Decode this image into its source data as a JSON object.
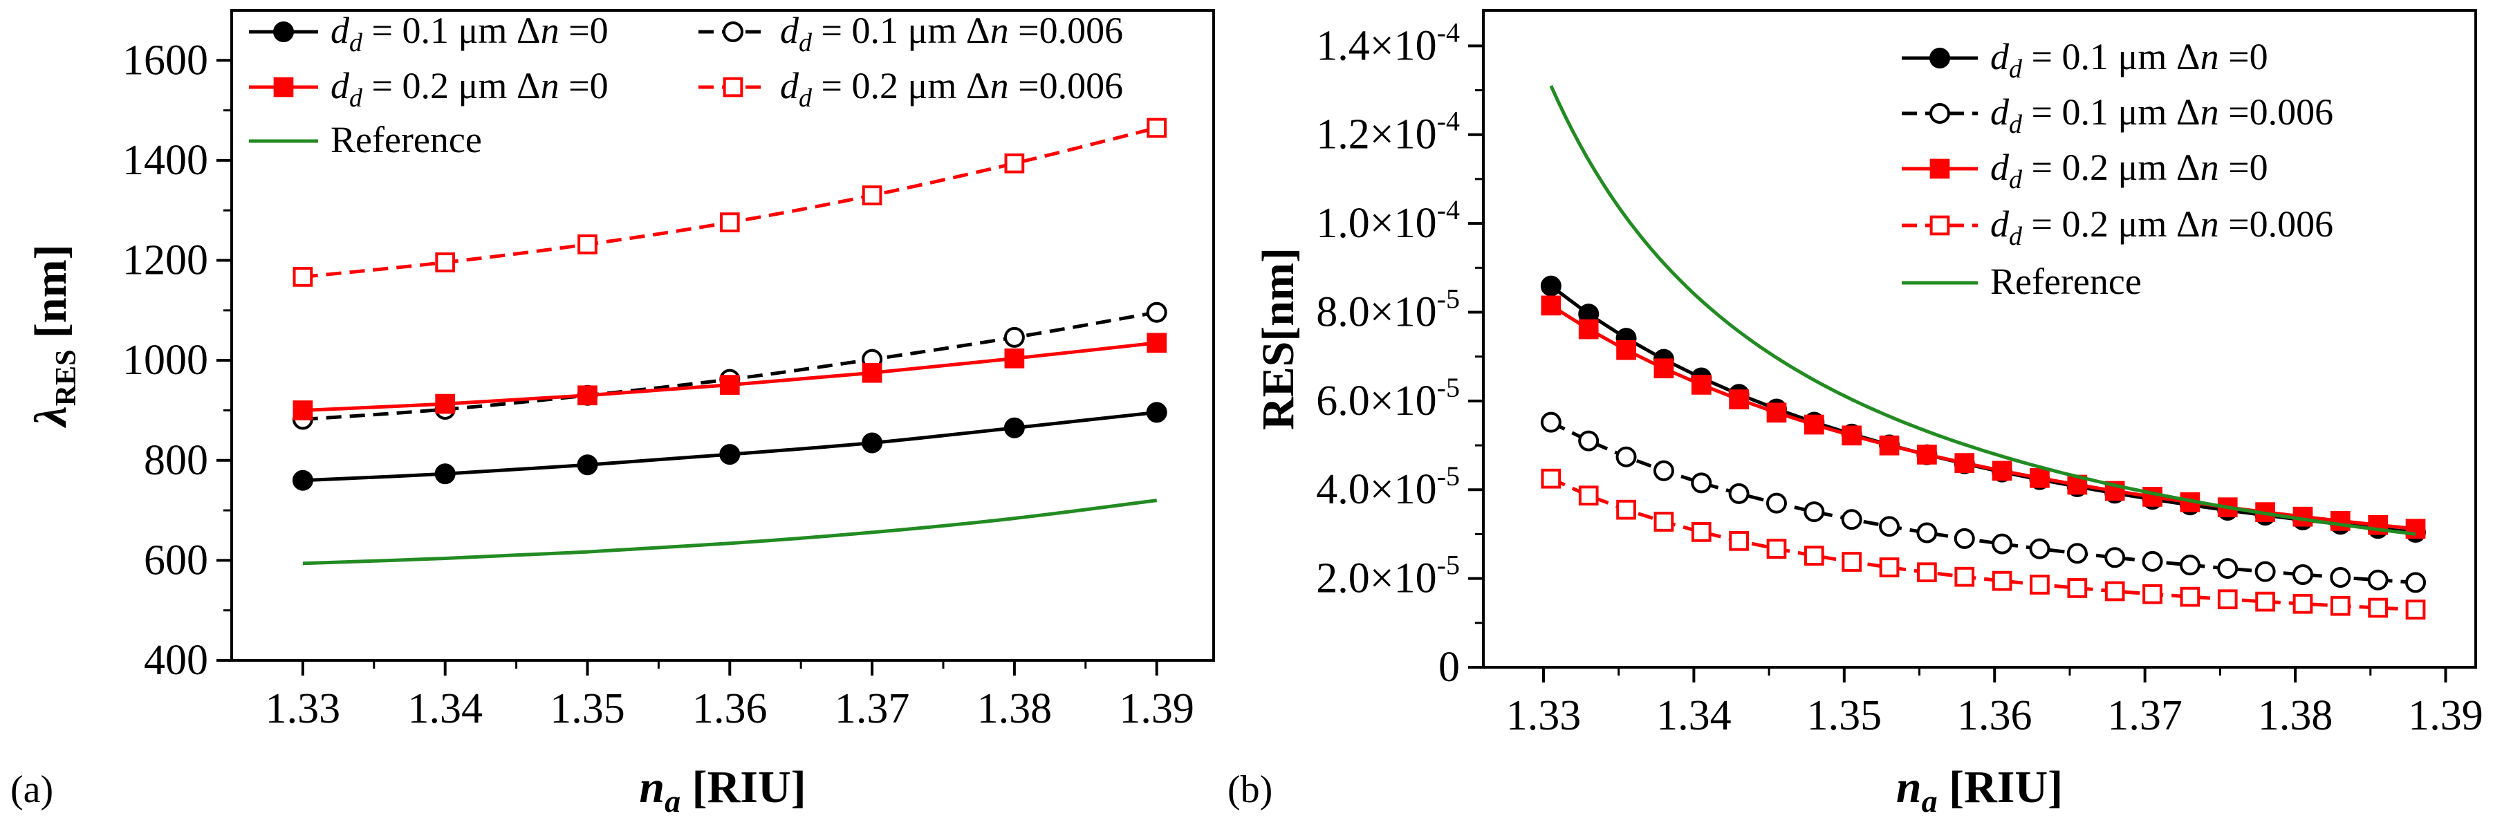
{
  "chart_data": [
    {
      "panel": "(a)",
      "type": "line",
      "xlabel": "n_a [RIU]",
      "xlabel_parts": {
        "var": "n",
        "sub": "a",
        "unit": " [RIU]"
      },
      "ylabel": "λRES [nm]",
      "ylabel_parts": {
        "var": "λ",
        "sub": "RES",
        "unit": " [nm]"
      },
      "xlim": [
        1.325,
        1.394
      ],
      "ylim": [
        400,
        1700
      ],
      "x_ticks": [
        "1.33",
        "1.34",
        "1.35",
        "1.36",
        "1.37",
        "1.38",
        "1.39"
      ],
      "y_ticks": [
        "400",
        "600",
        "800",
        "1000",
        "1200",
        "1400",
        "1600"
      ],
      "y_tick_values": [
        400,
        600,
        800,
        1000,
        1200,
        1400,
        1600
      ],
      "legend_position": "top",
      "series": [
        {
          "name": "dd = 0.1 μm Δn =0",
          "legend": {
            "pre": "d",
            "sub": "d",
            "post": " = 0.1 μm Δ",
            "ital": "n",
            "end": " =0"
          },
          "color": "#000000",
          "dash": "solid",
          "marker": "circle-filled",
          "x": [
            1.33,
            1.34,
            1.35,
            1.36,
            1.37,
            1.38,
            1.39
          ],
          "values": [
            760,
            773,
            791,
            812,
            835,
            865,
            896
          ]
        },
        {
          "name": "dd = 0.1 μm Δn =0.006",
          "legend": {
            "pre": "d",
            "sub": "d",
            "post": " = 0.1 μm Δ",
            "ital": "n",
            "end": " =0.006"
          },
          "color": "#000000",
          "dash": "dashed",
          "marker": "circle-open",
          "x": [
            1.33,
            1.34,
            1.35,
            1.36,
            1.37,
            1.38,
            1.39
          ],
          "values": [
            882,
            902,
            930,
            962,
            1002,
            1046,
            1096
          ]
        },
        {
          "name": "dd = 0.2 μm Δn =0",
          "legend": {
            "pre": "d",
            "sub": "d",
            "post": " = 0.2 μm Δ",
            "ital": "n",
            "end": " =0"
          },
          "color": "#ff0000",
          "dash": "solid",
          "marker": "square-filled",
          "x": [
            1.33,
            1.34,
            1.35,
            1.36,
            1.37,
            1.38,
            1.39
          ],
          "values": [
            900,
            913,
            930,
            951,
            975,
            1004,
            1035
          ]
        },
        {
          "name": "dd = 0.2 μm Δn =0.006",
          "legend": {
            "pre": "d",
            "sub": "d",
            "post": " = 0.2 μm Δ",
            "ital": "n",
            "end": " =0.006"
          },
          "color": "#ff0000",
          "dash": "dashed",
          "marker": "square-open",
          "x": [
            1.33,
            1.34,
            1.35,
            1.36,
            1.37,
            1.38,
            1.39
          ],
          "values": [
            1167,
            1196,
            1232,
            1276,
            1330,
            1394,
            1465
          ]
        },
        {
          "name": "Reference",
          "legend": {
            "pre": "Reference",
            "sub": "",
            "post": "",
            "ital": "",
            "end": ""
          },
          "color": "#228b22",
          "dash": "solid",
          "marker": "none",
          "x": [
            1.33,
            1.34,
            1.35,
            1.36,
            1.37,
            1.38,
            1.39
          ],
          "values": [
            594,
            604,
            617,
            634,
            656,
            684,
            720
          ]
        }
      ]
    },
    {
      "panel": "(b)",
      "type": "line",
      "xlabel": "n_a [RIU]",
      "xlabel_parts": {
        "var": "n",
        "sub": "a",
        "unit": " [RIU]"
      },
      "ylabel": "RES[nm]",
      "xlim": [
        1.326,
        1.392
      ],
      "ylim": [
        0,
        0.000148
      ],
      "x_ticks": [
        "1.33",
        "1.34",
        "1.35",
        "1.36",
        "1.37",
        "1.38",
        "1.39"
      ],
      "y_ticks": [
        {
          "mant": "0",
          "exp": ""
        },
        {
          "mant": "2.0×10",
          "exp": "-5"
        },
        {
          "mant": "4.0×10",
          "exp": "-5"
        },
        {
          "mant": "6.0×10",
          "exp": "-5"
        },
        {
          "mant": "8.0×10",
          "exp": "-5"
        },
        {
          "mant": "1.0×10",
          "exp": "-4"
        },
        {
          "mant": "1.2×10",
          "exp": "-4"
        },
        {
          "mant": "1.4×10",
          "exp": "-4"
        }
      ],
      "y_tick_values": [
        0,
        2e-05,
        4e-05,
        6e-05,
        8e-05,
        0.0001,
        0.00012,
        0.00014
      ],
      "legend_position": "top-right",
      "series": [
        {
          "name": "dd = 0.1 μm Δn =0",
          "legend": {
            "pre": "d",
            "sub": "d",
            "post": " = 0.1 μm Δ",
            "ital": "n",
            "end": " =0"
          },
          "color": "#000000",
          "dash": "solid",
          "marker": "circle-filled",
          "x_start": 1.3305,
          "x_step": 0.0025,
          "count": 24,
          "a": 8.59e-05,
          "b": 3.04e-05
        },
        {
          "name": "dd = 0.1 μm Δn =0.006",
          "legend": {
            "pre": "d",
            "sub": "d",
            "post": " = 0.1 μm Δ",
            "ital": "n",
            "end": " =0.006"
          },
          "color": "#000000",
          "dash": "dashed",
          "marker": "circle-open",
          "x_start": 1.3305,
          "x_step": 0.0025,
          "count": 24,
          "a": 5.52e-05,
          "b": 1.91e-05
        },
        {
          "name": "dd = 0.2 μm Δn =0",
          "legend": {
            "pre": "d",
            "sub": "d",
            "post": " = 0.2 μm Δ",
            "ital": "n",
            "end": " =0"
          },
          "color": "#ff0000",
          "dash": "solid",
          "marker": "square-filled",
          "x_start": 1.3305,
          "x_step": 0.0025,
          "count": 24,
          "a": 8.15e-05,
          "b": 3.12e-05
        },
        {
          "name": "dd = 0.2 μm Δn =0.006",
          "legend": {
            "pre": "d",
            "sub": "d",
            "post": " = 0.2 μm Δ",
            "ital": "n",
            "end": " =0.006"
          },
          "color": "#ff0000",
          "dash": "dashed",
          "marker": "square-open",
          "x_start": 1.3305,
          "x_step": 0.0025,
          "count": 24,
          "a": 4.25e-05,
          "b": 1.3e-05
        },
        {
          "name": "Reference",
          "legend": {
            "pre": "Reference",
            "sub": "",
            "post": "",
            "ital": "",
            "end": ""
          },
          "color": "#228b22",
          "dash": "solid",
          "marker": "none",
          "x_start": 1.3305,
          "x_step": 0.0025,
          "count": 24,
          "a": 0.000131,
          "b": 3e-05
        }
      ]
    }
  ]
}
